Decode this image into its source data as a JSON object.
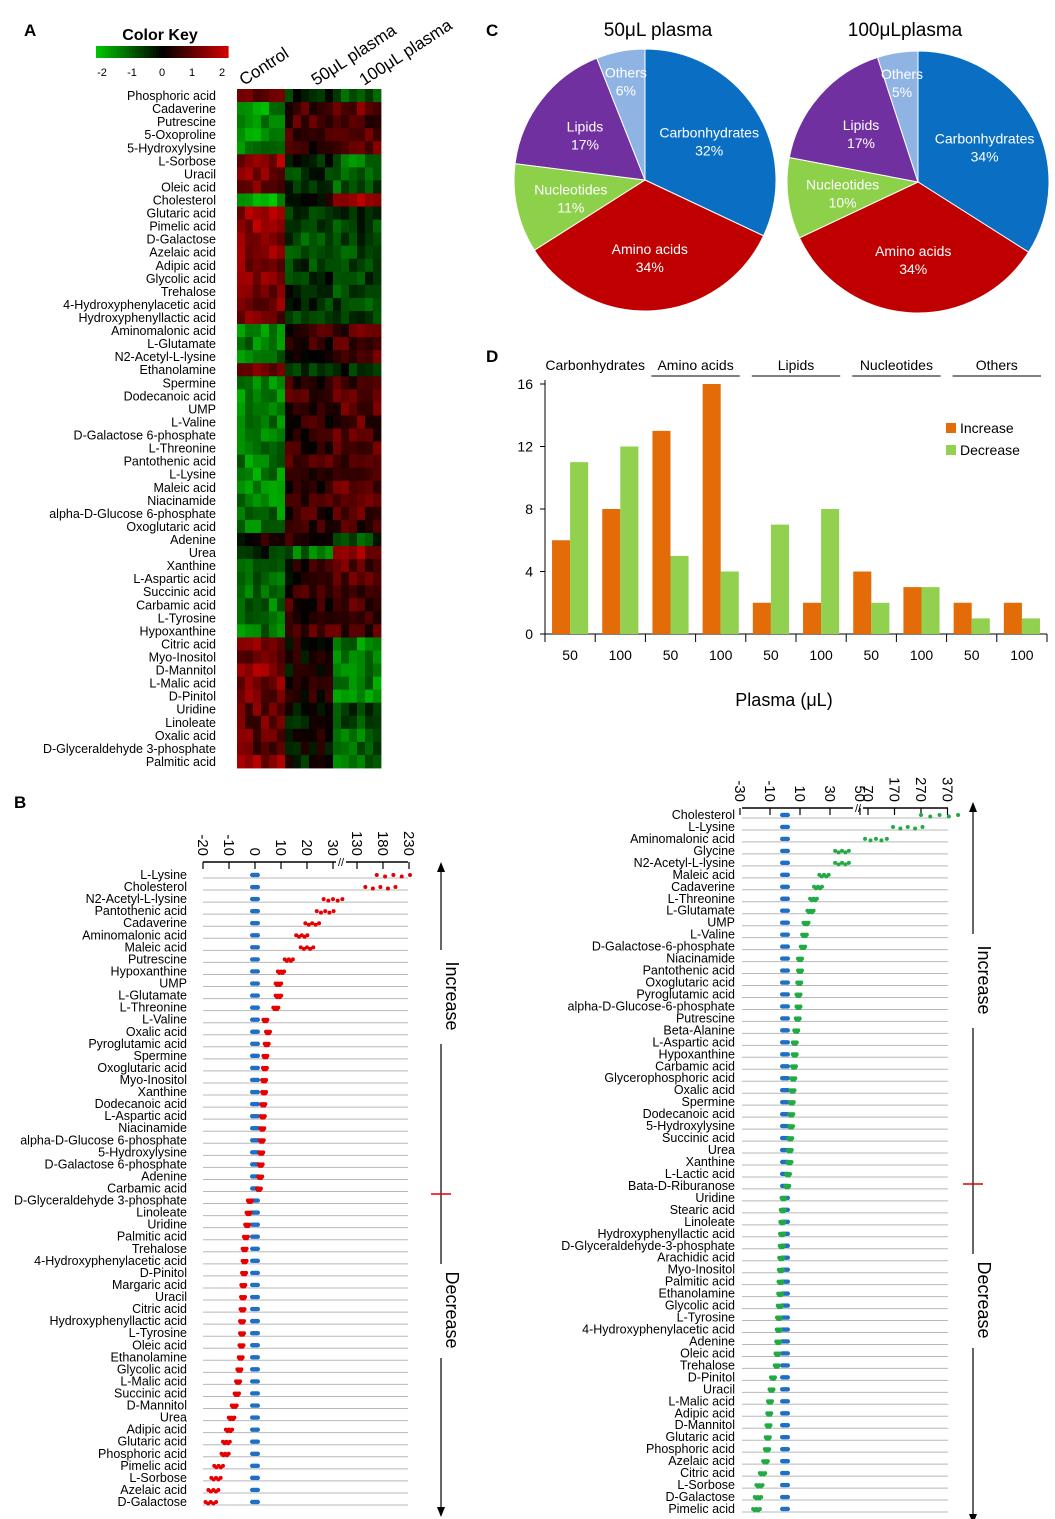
{
  "panel_labels": {
    "a": "A",
    "b": "B",
    "c": "C",
    "d": "D"
  },
  "colors": {
    "heat_low": "#00c800",
    "heat_mid": "#000000",
    "heat_high": "#d40000",
    "red_series": "#e60000",
    "blue_series": "#1f6fc5",
    "green_series": "#22aa44",
    "pie_carb": "#0a6fc2",
    "pie_amino": "#c00000",
    "pie_nucl": "#8dd14b",
    "pie_lipid": "#7030a0",
    "pie_other": "#8fb4e3",
    "bar_increase": "#e36c09",
    "bar_decrease": "#92d050",
    "midline": "#e60000"
  },
  "chart_data": [
    {
      "type": "heatmap",
      "panel": "A",
      "title": "Color Key",
      "key_ticks": [
        "-2",
        "-1",
        "0",
        "1",
        "2"
      ],
      "columns": [
        "Control",
        "50μL plasma",
        "100μL plasma"
      ],
      "rows": [
        "Phosphoric acid",
        "Cadaverine",
        "Putrescine",
        "5-Oxoproline",
        "5-Hydroxylysine",
        "L-Sorbose",
        "Uracil",
        "Oleic acid",
        "Cholesterol",
        "Glutaric acid",
        "Pimelic acid",
        "D-Galactose",
        "Azelaic acid",
        "Adipic acid",
        "Glycolic acid",
        "Trehalose",
        "4-Hydroxyphenylacetic acid",
        "Hydroxyphenyllactic acid",
        "Aminomalonic acid",
        "L-Glutamate",
        "N2-Acetyl-L-lysine",
        "Ethanolamine",
        "Spermine",
        "Dodecanoic acid",
        "UMP",
        "L-Valine",
        "D-Galactose 6-phosphate",
        "L-Threonine",
        "Pantothenic acid",
        "L-Lysine",
        "Maleic acid",
        "Niacinamide",
        "alpha-D-Glucose 6-phosphate",
        "Oxoglutaric acid",
        "Adenine",
        "Urea",
        "Xanthine",
        "L-Aspartic acid",
        "Succinic acid",
        "Carbamic acid",
        "L-Tyrosine",
        "Hypoxanthine",
        "Citric acid",
        "Myo-Inositol",
        "D-Mannitol",
        "L-Malic acid",
        "D-Pinitol",
        "Uridine",
        "Linoleate",
        "Oxalic acid",
        "D-Glyceraldehyde 3-phosphate",
        "Palmitic acid"
      ],
      "group_means": [
        [
          1.2,
          -0.4,
          -0.8
        ],
        [
          -1.6,
          0.6,
          1.0
        ],
        [
          -1.4,
          0.7,
          0.7
        ],
        [
          -1.5,
          0.5,
          1.0
        ],
        [
          -1.5,
          0.6,
          0.9
        ],
        [
          1.5,
          -0.3,
          -1.2
        ],
        [
          1.3,
          -0.5,
          -0.8
        ],
        [
          1.2,
          -0.3,
          -0.9
        ],
        [
          -1.8,
          0.3,
          1.5
        ],
        [
          1.5,
          -0.8,
          -0.7
        ],
        [
          1.5,
          -0.8,
          -0.7
        ],
        [
          1.5,
          -0.8,
          -0.7
        ],
        [
          1.4,
          -0.7,
          -0.7
        ],
        [
          1.3,
          -0.6,
          -0.7
        ],
        [
          1.2,
          -0.5,
          -0.7
        ],
        [
          1.2,
          -0.4,
          -0.8
        ],
        [
          1.2,
          -0.5,
          -0.7
        ],
        [
          1.1,
          -0.6,
          -0.5
        ],
        [
          -1.3,
          0.5,
          0.8
        ],
        [
          -1.3,
          0.4,
          0.9
        ],
        [
          -1.3,
          0.4,
          0.9
        ],
        [
          1.0,
          -0.6,
          -0.4
        ],
        [
          -1.4,
          0.6,
          0.8
        ],
        [
          -1.4,
          0.6,
          0.8
        ],
        [
          -1.4,
          0.6,
          0.8
        ],
        [
          -1.3,
          0.5,
          0.8
        ],
        [
          -1.3,
          0.5,
          0.8
        ],
        [
          -1.2,
          0.4,
          0.8
        ],
        [
          -1.4,
          0.8,
          0.6
        ],
        [
          -1.5,
          0.6,
          0.9
        ],
        [
          -1.4,
          0.5,
          0.9
        ],
        [
          -1.4,
          0.6,
          0.8
        ],
        [
          -1.3,
          0.5,
          0.8
        ],
        [
          -1.3,
          0.6,
          0.7
        ],
        [
          0.2,
          0.5,
          -0.7
        ],
        [
          -0.5,
          -1.2,
          1.4
        ],
        [
          -1.2,
          0.3,
          0.9
        ],
        [
          -1.1,
          0.2,
          0.9
        ],
        [
          -1.2,
          0.5,
          0.7
        ],
        [
          -1.2,
          0.5,
          0.7
        ],
        [
          -1.0,
          0.3,
          0.7
        ],
        [
          -1.3,
          0.6,
          0.7
        ],
        [
          1.2,
          0.2,
          -1.4
        ],
        [
          1.1,
          0.1,
          -1.2
        ],
        [
          1.4,
          0.0,
          -1.4
        ],
        [
          1.3,
          0.1,
          -1.4
        ],
        [
          1.2,
          0.2,
          -1.4
        ],
        [
          1.1,
          -0.3,
          -0.8
        ],
        [
          1.0,
          -0.1,
          -0.9
        ],
        [
          1.0,
          0.1,
          -1.1
        ],
        [
          0.9,
          0.0,
          -0.9
        ],
        [
          1.4,
          -0.2,
          -1.2
        ]
      ]
    },
    {
      "type": "scatter",
      "panel": "B-left",
      "xlim": [
        -20,
        230
      ],
      "x_ticks": [
        "-20",
        "-10",
        "0",
        "10",
        "20",
        "30",
        "130",
        "180",
        "230"
      ],
      "label_increase": "Increase",
      "label_decrease": "Decrease",
      "metabolites": [
        "L-Lysine",
        "Cholesterol",
        "N2-Acetyl-L-lysine",
        "Pantothenic acid",
        "Cadaverine",
        "Aminomalonic acid",
        "Maleic acid",
        "Putrescine",
        "Hypoxanthine",
        "UMP",
        "L-Glutamate",
        "L-Threonine",
        "L-Valine",
        "Oxalic acid",
        "Pyroglutamic acid",
        "Spermine",
        "Oxoglutaric acid",
        "Myo-Inositol",
        "Xanthine",
        "Dodecanoic acid",
        "L-Aspartic acid",
        "Niacinamide",
        "alpha-D-Glucose 6-phosphate",
        "5-Hydroxylysine",
        "D-Galactose 6-phosphate",
        "Adenine",
        "Carbamic acid",
        "D-Glyceraldehyde 3-phosphate",
        "Linoleate",
        "Uridine",
        "Palmitic acid",
        "Trehalose",
        "4-Hydroxyphenylacetic acid",
        "D-Pinitol",
        "Margaric acid",
        "Uracil",
        "Citric acid",
        "Hydroxyphenyllactic acid",
        "L-Tyrosine",
        "Oleic acid",
        "Ethanolamine",
        "Glycolic acid",
        "L-Malic acid",
        "Succinic acid",
        "D-Mannitol",
        "Urea",
        "Adipic acid",
        "Glutaric acid",
        "Phosphoric acid",
        "Pimelic acid",
        "L-Sorbose",
        "Azelaic acid",
        "D-Galactose"
      ],
      "values": [
        200,
        175,
        32,
        27,
        22,
        18,
        20,
        13,
        10,
        9,
        9,
        8,
        4,
        5,
        4.5,
        4,
        3.8,
        3.5,
        3.5,
        3.2,
        3,
        2.8,
        2.6,
        2.4,
        2.2,
        2,
        1.5,
        -2,
        -2.5,
        -3,
        -3.5,
        -4,
        -4,
        -4.2,
        -4.5,
        -4.6,
        -4.8,
        -5,
        -5,
        -5.2,
        -5.5,
        -6,
        -6.5,
        -7,
        -8,
        -9,
        -10,
        -11,
        -11.5,
        -14,
        -15,
        -16,
        -17
      ]
    },
    {
      "type": "scatter",
      "panel": "B-right",
      "xlim": [
        -30,
        370
      ],
      "x_ticks": [
        "-30",
        "-10",
        "10",
        "30",
        "50",
        "70",
        "170",
        "270",
        "370"
      ],
      "label_increase": "Increase",
      "label_decrease": "Decrease",
      "metabolites": [
        "Cholesterol",
        "L-Lysine",
        "Aminomalonic acid",
        "Glycine",
        "N2-Acetyl-L-lysine",
        "Maleic acid",
        "Cadaverine",
        "L-Threonine",
        "L-Glutamate",
        "UMP",
        "L-Valine",
        "D-Galactose-6-phosphate",
        "Niacinamide",
        "Pantothenic acid",
        "Oxoglutaric acid",
        "Pyroglutamic acid",
        "alpha-D-Glucose-6-phosphate",
        "Putrescine",
        "Beta-Alanine",
        "L-Aspartic acid",
        "Hypoxanthine",
        "Carbamic acid",
        "Glycerophosphoric acid",
        "Oxalic acid",
        "Spermine",
        "Dodecanoic acid",
        "5-Hydroxylysine",
        "Succinic acid",
        "Urea",
        "Xanthine",
        "L-Lactic acid",
        "Bata-D-Riburanose",
        "Uridine",
        "Stearic acid",
        "Linoleate",
        "Hydroxyphenyllactic acid",
        "D-Glyceraldehyde-3-phosphate",
        "Arachidic acid",
        "Myo-Inositol",
        "Palmitic acid",
        "Ethanolamine",
        "Glycolic acid",
        "L-Tyrosine",
        "4-Hydroxyphenylacetic acid",
        "Adenine",
        "Oleic acid",
        "Trehalose",
        "D-Pinitol",
        "Uracil",
        "L-Malic acid",
        "Adipic acid",
        "D-Mannitol",
        "Glutaric acid",
        "Phosphoric acid",
        "Azelaic acid",
        "Citric acid",
        "L-Sorbose",
        "D-Galactose",
        "Pimelic acid"
      ],
      "values": [
        340,
        220,
        100,
        38,
        38,
        26,
        22,
        19,
        17,
        14,
        13,
        12,
        10,
        10,
        9.5,
        9,
        9,
        8.5,
        7.5,
        6.5,
        6.5,
        6,
        5.5,
        5,
        4.5,
        4.2,
        4,
        3.5,
        3.2,
        3,
        2,
        1.5,
        -1,
        -1.5,
        -1.8,
        -2,
        -2.2,
        -2.5,
        -2.8,
        -3,
        -3.2,
        -3.5,
        -4,
        -4.2,
        -4.5,
        -5,
        -5.5,
        -8,
        -9,
        -10,
        -10.5,
        -11,
        -11.5,
        -12,
        -13,
        -15,
        -17,
        -18,
        -19
      ]
    },
    {
      "type": "pie",
      "panel": "C-left",
      "title": "50μL plasma",
      "labels": [
        "Carbonhydrates",
        "Amino acids",
        "Nucleotides",
        "Lipids",
        "Others"
      ],
      "values": [
        32,
        34,
        11,
        17,
        6
      ],
      "pct_labels": [
        "32%",
        "34%",
        "11%",
        "17%",
        "6%"
      ]
    },
    {
      "type": "pie",
      "panel": "C-right",
      "title": "100μLplasma",
      "labels": [
        "Carbonhydrates",
        "Amino acids",
        "Nucleotides",
        "Lipids",
        "Others"
      ],
      "values": [
        34,
        34,
        10,
        17,
        5
      ],
      "pct_labels": [
        "34%",
        "34%",
        "10%",
        "17%",
        "5%"
      ]
    },
    {
      "type": "bar",
      "panel": "D",
      "group_labels": [
        "Carbonhydrates",
        "Amino acids",
        "Lipids",
        "Nucleotides",
        "Others"
      ],
      "categories": [
        "50",
        "100",
        "50",
        "100",
        "50",
        "100",
        "50",
        "100",
        "50",
        "100"
      ],
      "series": [
        {
          "name": "Increase",
          "values": [
            6,
            8,
            13,
            16,
            2,
            2,
            4,
            3,
            2,
            2
          ]
        },
        {
          "name": "Decrease",
          "values": [
            11,
            12,
            5,
            4,
            7,
            8,
            2,
            3,
            1,
            1
          ]
        }
      ],
      "y_ticks": [
        "0",
        "4",
        "8",
        "12",
        "16"
      ],
      "ylim": [
        0,
        16
      ],
      "xlabel": "Plasma (μL)",
      "legend_position": "top-right"
    }
  ]
}
